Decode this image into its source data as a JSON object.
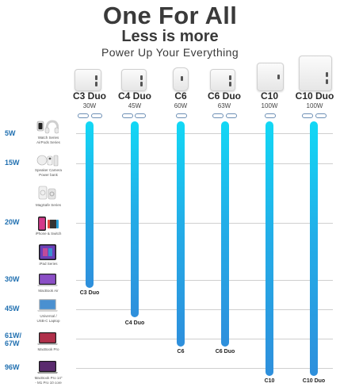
{
  "header": {
    "title": "One For All",
    "subtitle": "Less is more",
    "tagline": "Power Up Your Everything"
  },
  "products": [
    {
      "name": "C3 Duo",
      "watt": "30W",
      "ports": 2
    },
    {
      "name": "C4 Duo",
      "watt": "45W",
      "ports": 2
    },
    {
      "name": "C6",
      "watt": "60W",
      "ports": 1
    },
    {
      "name": "C6 Duo",
      "watt": "63W",
      "ports": 2
    },
    {
      "name": "C10",
      "watt": "100W",
      "ports": 1
    },
    {
      "name": "C10 Duo",
      "watt": "100W",
      "ports": 2
    }
  ],
  "watt_levels": [
    "5W",
    "15W",
    "20W",
    "30W",
    "45W",
    "61W/\n67W",
    "96W"
  ],
  "devices": [
    {
      "caption": "Watch Series\nAirPods Series",
      "icon": "watch-airpods-icon"
    },
    {
      "caption": "Speaker Camera\nPower bank",
      "icon": "speaker-camera-powerbank-icon"
    },
    {
      "caption": "MagSafe Series",
      "icon": "magsafe-icon"
    },
    {
      "caption": "iPhone & Switch",
      "icon": "iphone-switch-icon"
    },
    {
      "caption": "iPad Series",
      "icon": "ipad-icon"
    },
    {
      "caption": "MacBook Air",
      "icon": "macbook-air-icon"
    },
    {
      "caption": "Universal /\nUSB-C Laptop",
      "icon": "laptop-icon"
    },
    {
      "caption": "MacBook Pro",
      "icon": "macbook-pro-icon"
    },
    {
      "caption": "MacBook Pro 14\"\n- M1 Pro 10 core",
      "icon": "macbook-pro-14-icon"
    }
  ],
  "bar_labels": [
    "C3 Duo",
    "C4 Duo",
    "C6",
    "C6 Duo",
    "C10",
    "C10 Duo"
  ],
  "colors": {
    "bar_top": "#12d8f5",
    "bar_bottom": "#2e8fdc",
    "watt_label": "#1f6fb0"
  }
}
